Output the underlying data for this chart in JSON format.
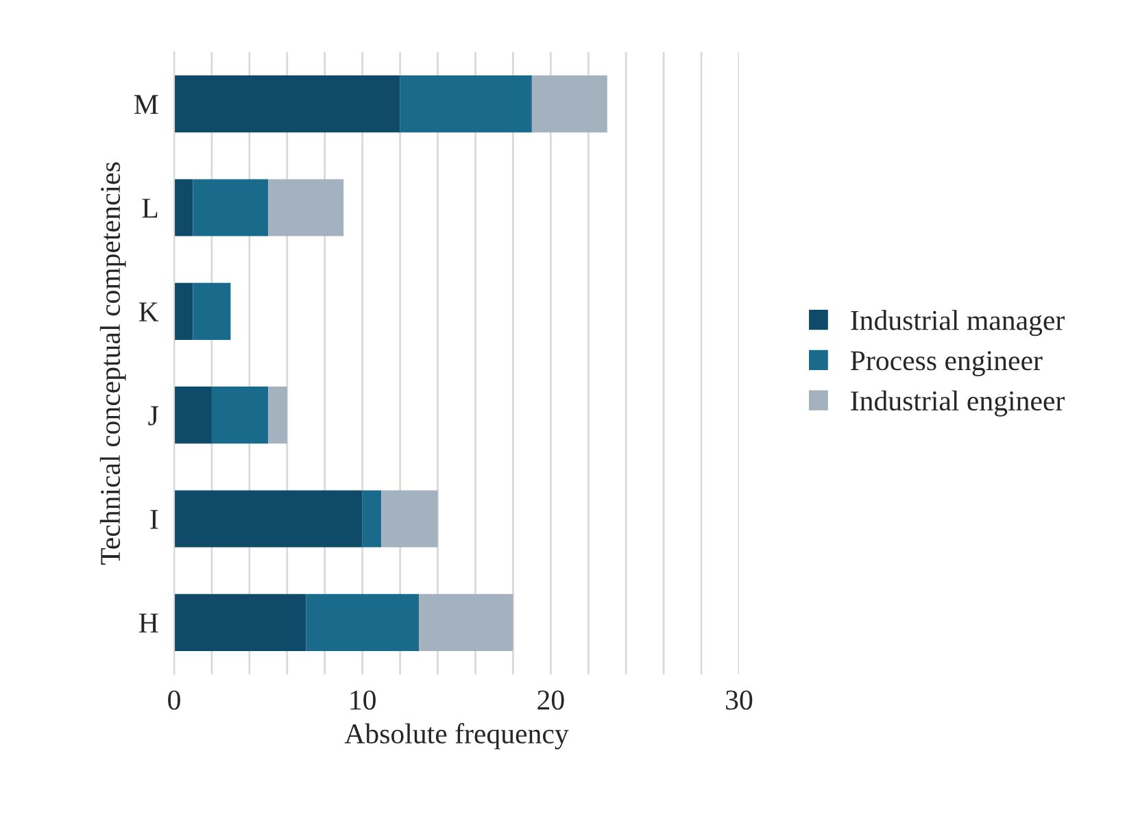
{
  "chart_data": {
    "type": "bar",
    "orientation": "horizontal",
    "stacked": true,
    "xlabel": "Absolute frequency",
    "ylabel": "Technical conceptual competencies",
    "categories": [
      "M",
      "L",
      "K",
      "J",
      "I",
      "H"
    ],
    "series": [
      {
        "name": "Industrial manager",
        "color": "#0f4b68",
        "values": [
          12,
          1,
          1,
          2,
          10,
          7
        ]
      },
      {
        "name": "Process engineer",
        "color": "#196a8b",
        "values": [
          7,
          4,
          2,
          3,
          1,
          6
        ]
      },
      {
        "name": "Industrial engineer",
        "color": "#a3b2be",
        "values": [
          4,
          4,
          null,
          1,
          3,
          5
        ]
      }
    ],
    "xlim": [
      0,
      30
    ],
    "xticks": [
      0,
      {
        "value": 2,
        "label": null
      },
      {
        "value": 4,
        "label": null
      },
      {
        "value": 6,
        "label": null
      },
      {
        "value": 8,
        "label": null
      },
      10,
      {
        "value": 12,
        "label": null
      },
      {
        "value": 14,
        "label": null
      },
      {
        "value": 16,
        "label": null
      },
      {
        "value": 18,
        "label": null
      },
      20,
      {
        "value": 22,
        "label": null
      },
      {
        "value": 24,
        "label": null
      },
      {
        "value": 26,
        "label": null
      },
      {
        "value": 28,
        "label": null
      },
      30
    ],
    "grid": "x",
    "legend": "right"
  }
}
